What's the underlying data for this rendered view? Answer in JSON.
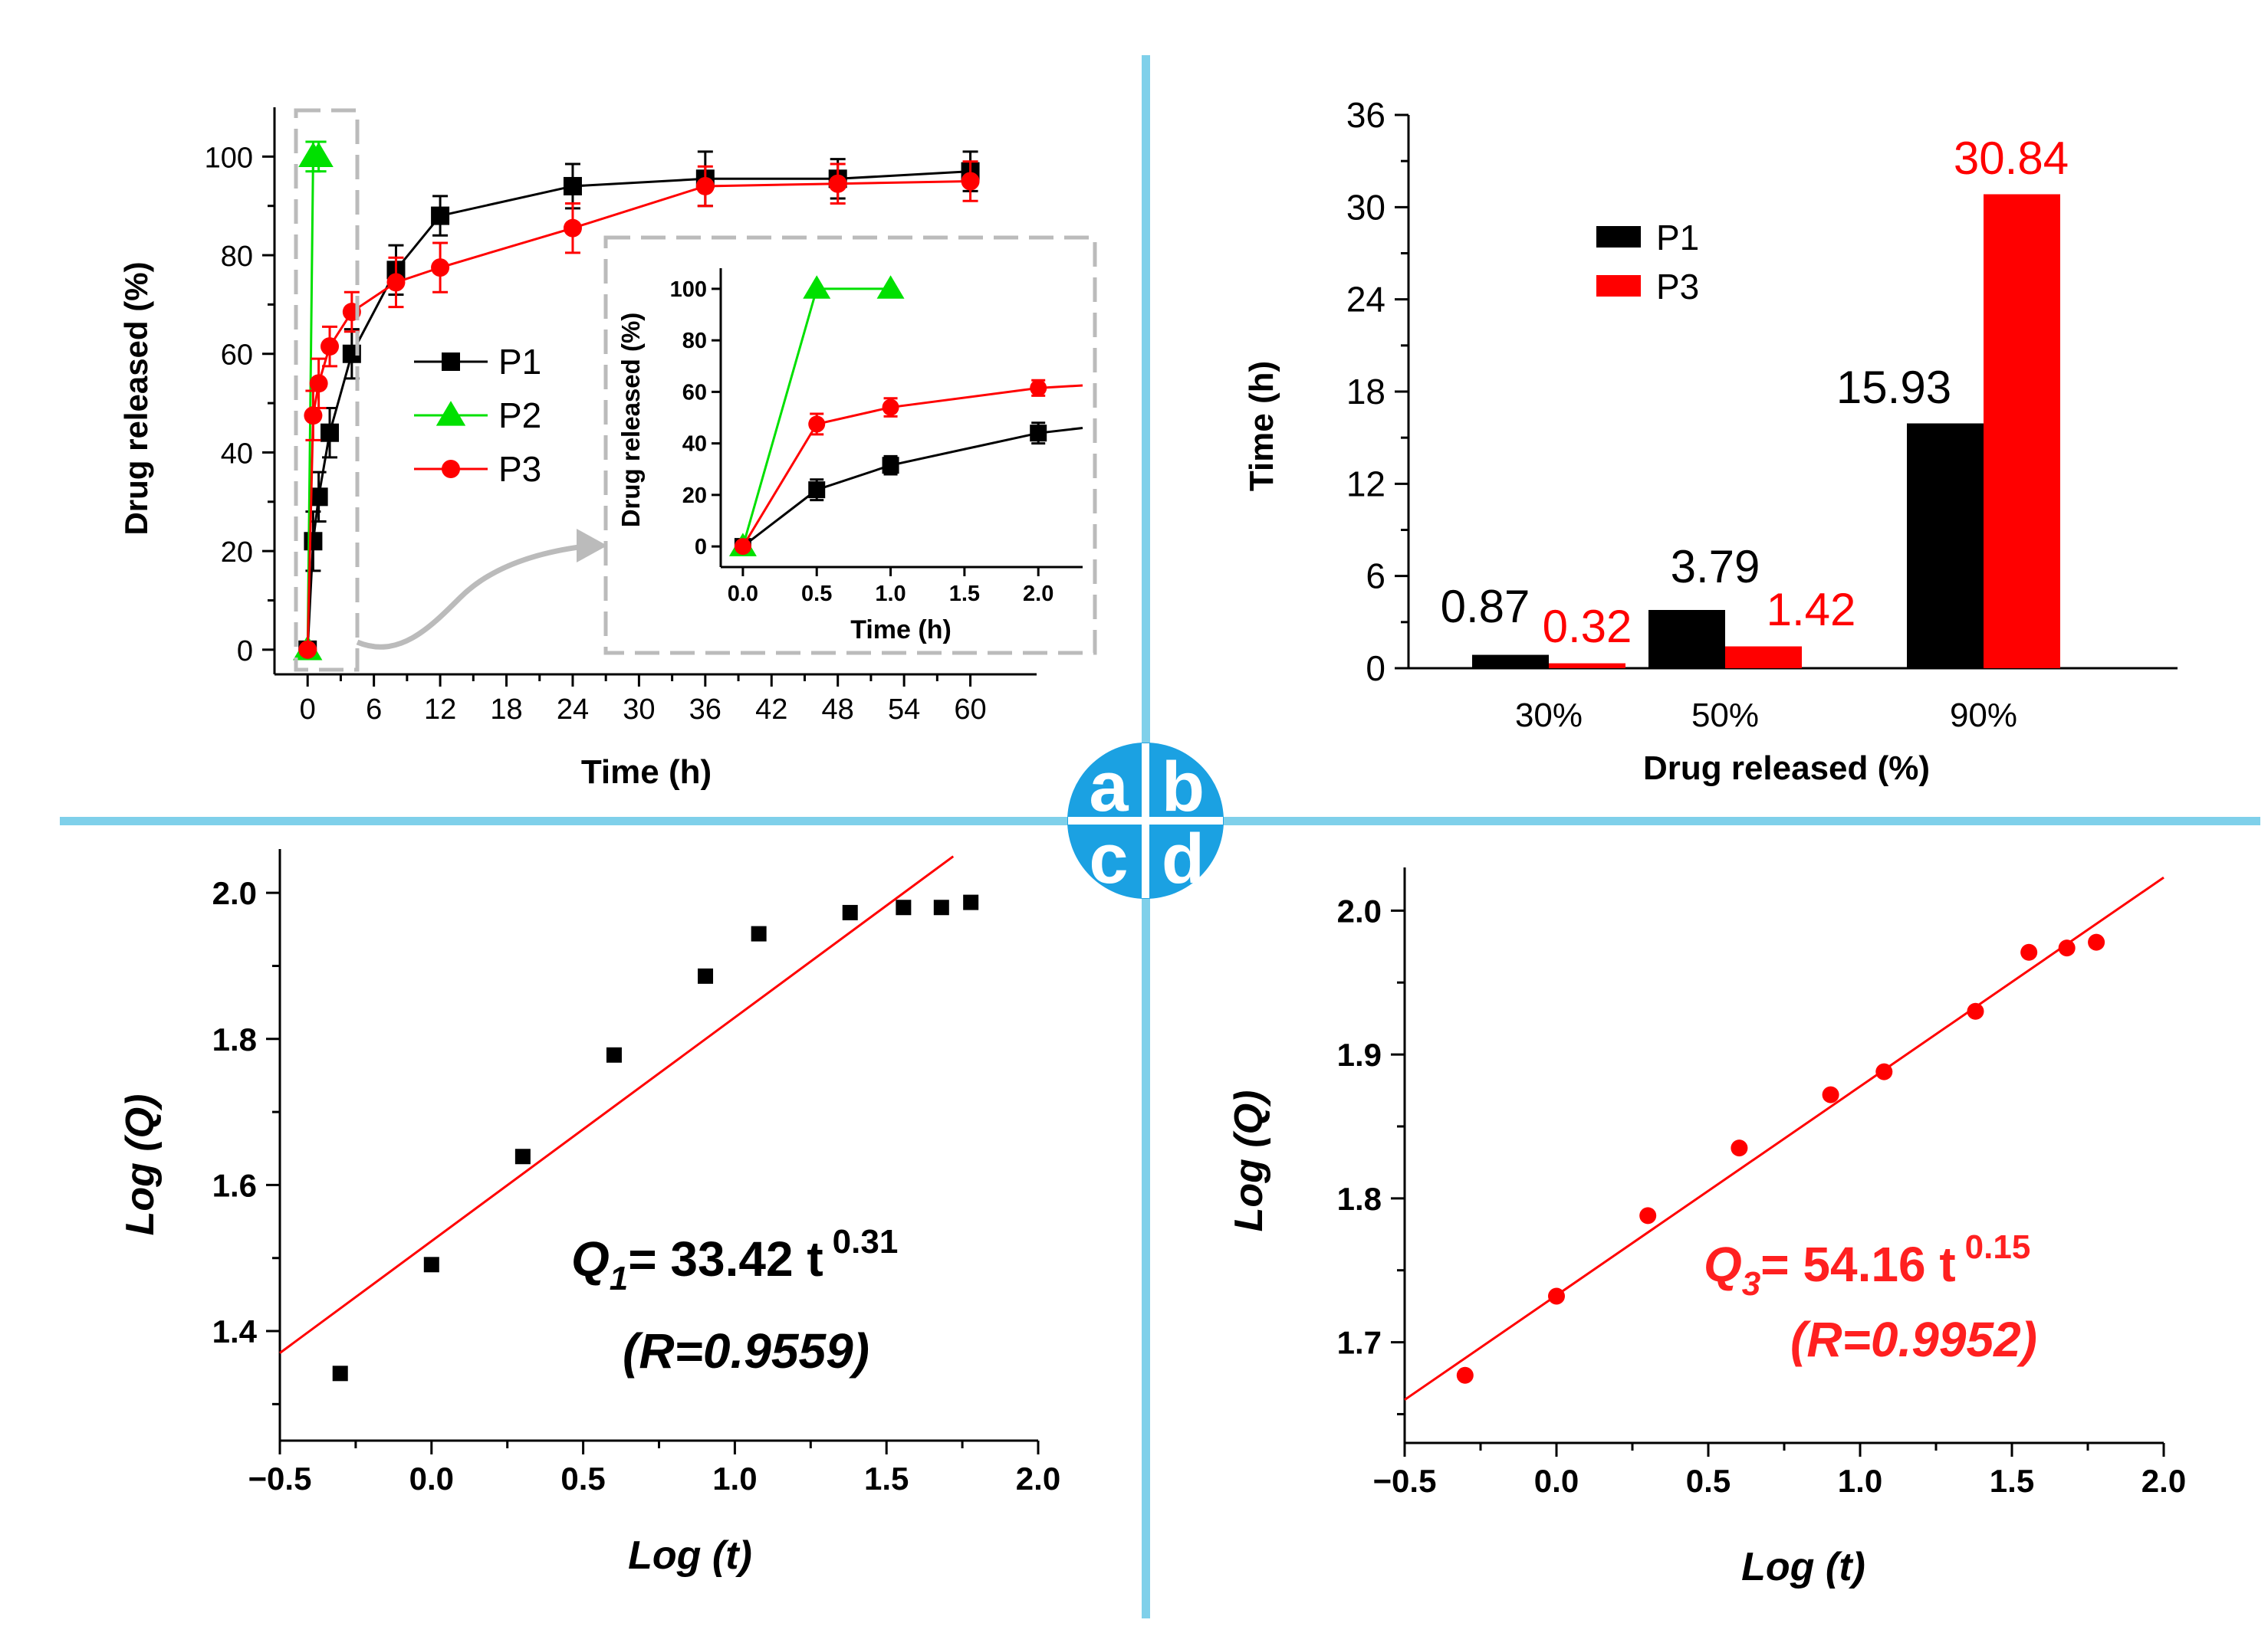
{
  "badge": {
    "letters": [
      "a",
      "b",
      "c",
      "d"
    ],
    "color": "#1ba1e2"
  },
  "divider_color": "#7fd0ea",
  "colors": {
    "black": "#000000",
    "green": "#00e000",
    "red": "#ff0000",
    "gray": "#bbbbbb",
    "fitline": "#ff0000"
  },
  "chart_data": [
    {
      "panel": "a",
      "type": "line",
      "xlabel": "Time (h)",
      "ylabel": "Drug released (%)",
      "xlim": [
        -3,
        66
      ],
      "ylim": [
        -5,
        110
      ],
      "xticks": [
        0,
        6,
        12,
        18,
        24,
        30,
        36,
        42,
        48,
        54,
        60
      ],
      "yticks": [
        0,
        20,
        40,
        60,
        80,
        100
      ],
      "legend": "center-left",
      "series": [
        {
          "name": "P1",
          "marker": "square",
          "color": "#000000",
          "x": [
            0,
            0.5,
            1,
            2,
            4,
            8,
            12,
            24,
            36,
            48,
            60
          ],
          "y": [
            0,
            22,
            31,
            44,
            60,
            77,
            88,
            94,
            95.5,
            95.5,
            97
          ],
          "err": [
            0,
            6,
            5,
            5,
            5,
            5,
            4,
            4.5,
            5.5,
            4,
            4
          ]
        },
        {
          "name": "P2",
          "marker": "triangle",
          "color": "#00e000",
          "x": [
            0,
            0.5,
            1
          ],
          "y": [
            0,
            100,
            100
          ],
          "err": [
            0,
            3,
            3
          ]
        },
        {
          "name": "P3",
          "marker": "circle",
          "color": "#ff0000",
          "x": [
            0,
            0.5,
            1,
            2,
            4,
            8,
            12,
            24,
            36,
            48,
            60
          ],
          "y": [
            0,
            47.5,
            54,
            61.5,
            68.5,
            74.5,
            77.5,
            85.5,
            94,
            94.5,
            95
          ],
          "err": [
            0,
            5,
            5,
            4,
            4,
            5,
            5,
            5,
            4,
            4,
            4
          ]
        }
      ],
      "inset": {
        "xlabel": "Time (h)",
        "ylabel": "Drug released (%)",
        "xlim": [
          -0.15,
          2.3
        ],
        "ylim": [
          -8,
          108
        ],
        "xticks": [
          0.0,
          0.5,
          1.0,
          1.5,
          2.0
        ],
        "xtick_labels": [
          "0.0",
          "0.5",
          "1.0",
          "1.5",
          "2.0"
        ],
        "yticks": [
          0,
          20,
          40,
          60,
          80,
          100
        ],
        "series": [
          {
            "name": "P1",
            "x": [
              0,
              0.5,
              1,
              2
            ],
            "y": [
              0,
              22,
              31.5,
              44
            ],
            "err": [
              0,
              4,
              3.5,
              4
            ],
            "extend_to": [
              2.3,
              46
            ]
          },
          {
            "name": "P2",
            "x": [
              0,
              0.5,
              1
            ],
            "y": [
              0,
              100,
              100
            ],
            "err": [
              0,
              0,
              0
            ]
          },
          {
            "name": "P3",
            "x": [
              0,
              0.5,
              1,
              2
            ],
            "y": [
              0,
              47.5,
              54,
              61.5
            ],
            "err": [
              0,
              4,
              3.5,
              3
            ],
            "extend_to": [
              2.3,
              62.5
            ]
          }
        ]
      }
    },
    {
      "panel": "b",
      "type": "bar",
      "xlabel": "Drug released (%)",
      "ylabel": "Time (h)",
      "categories": [
        "30%",
        "50%",
        "90%"
      ],
      "ylim": [
        0,
        36
      ],
      "yticks": [
        0,
        6,
        12,
        18,
        24,
        30,
        36
      ],
      "legend": "top-left",
      "series": [
        {
          "name": "P1",
          "color": "#000000",
          "values": [
            0.87,
            3.79,
            15.93
          ],
          "labels": [
            "0.87",
            "3.79",
            "15.93"
          ]
        },
        {
          "name": "P3",
          "color": "#ff0000",
          "values": [
            0.32,
            1.42,
            30.84
          ],
          "labels": [
            "0.32",
            "1.42",
            "30.84"
          ]
        }
      ]
    },
    {
      "panel": "c",
      "type": "scatter",
      "xlabel": "Log (t)",
      "ylabel": "Log (Q)",
      "xlim": [
        -0.5,
        2.0
      ],
      "ylim": [
        1.25,
        2.06
      ],
      "xticks": [
        -0.5,
        0.0,
        0.5,
        1.0,
        1.5,
        2.0
      ],
      "xtick_labels": [
        "−0.5",
        "0.0",
        "0.5",
        "1.0",
        "1.5",
        "2.0"
      ],
      "yticks": [
        1.4,
        1.6,
        1.8,
        2.0
      ],
      "ytick_labels": [
        "1.4",
        "1.6",
        "1.8",
        "2.0"
      ],
      "marker": "square",
      "marker_color": "#000000",
      "x": [
        -0.301,
        0.0,
        0.301,
        0.602,
        0.903,
        1.079,
        1.38,
        1.556,
        1.681,
        1.778
      ],
      "y": [
        1.342,
        1.491,
        1.639,
        1.778,
        1.886,
        1.944,
        1.973,
        1.98,
        1.98,
        1.987
      ],
      "fit": {
        "x": [
          -0.5,
          1.72
        ],
        "y": [
          1.37,
          2.05
        ]
      },
      "equation": {
        "main": "Q",
        "sub": "1",
        "mid": "= 33.42 t",
        "sup": "0.31",
        "r": "(R=0.9559)",
        "color": "#000000"
      }
    },
    {
      "panel": "d",
      "type": "scatter",
      "xlabel": "Log (t)",
      "ylabel": "Log (Q)",
      "xlim": [
        -0.5,
        2.0
      ],
      "ylim": [
        1.63,
        2.03
      ],
      "xticks": [
        -0.5,
        0.0,
        0.5,
        1.0,
        1.5,
        2.0
      ],
      "xtick_labels": [
        "−0.5",
        "0.0",
        "0.5",
        "1.0",
        "1.5",
        "2.0"
      ],
      "yticks": [
        1.7,
        1.8,
        1.9,
        2.0
      ],
      "ytick_labels": [
        "1.7",
        "1.8",
        "1.9",
        "2.0"
      ],
      "marker": "circle",
      "marker_color": "#ff0000",
      "x": [
        -0.301,
        0.0,
        0.301,
        0.602,
        0.903,
        1.079,
        1.38,
        1.556,
        1.681,
        1.778
      ],
      "y": [
        1.677,
        1.732,
        1.788,
        1.835,
        1.872,
        1.888,
        1.93,
        1.971,
        1.974,
        1.978
      ],
      "fit": {
        "x": [
          -0.5,
          2.0
        ],
        "y": [
          1.66,
          2.023
        ]
      },
      "equation": {
        "main": "Q",
        "sub": "3",
        "mid": "= 54.16 t",
        "sup": "0.15",
        "r": "(R=0.9952)",
        "color": "#ff2020"
      }
    }
  ]
}
